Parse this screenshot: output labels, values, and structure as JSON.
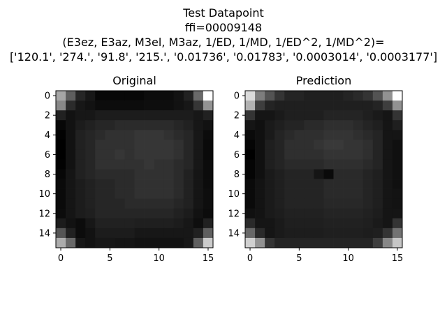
{
  "figure": {
    "title_lines": [
      "Test Datapoint",
      "ffi=00009148",
      "(E3ez, E3az, M3el, M3az, 1/ED, 1/MD, 1/ED^2, 1/MD^2)=",
      "['120.1', '274.', '91.8', '215.', '0.01736', '0.01783', '0.0003014', '0.0003177']"
    ]
  },
  "chart_data": [
    {
      "type": "heatmap",
      "title": "Original",
      "colormap": "gray",
      "x_ticks": [
        0,
        5,
        10,
        15
      ],
      "y_ticks": [
        0,
        2,
        4,
        6,
        8,
        10,
        12,
        14
      ],
      "xlim": [
        -0.5,
        15.5
      ],
      "ylim": [
        15.5,
        -0.5
      ],
      "values": [
        [
          170,
          100,
          45,
          30,
          15,
          15,
          15,
          15,
          15,
          20,
          20,
          20,
          25,
          40,
          110,
          255
        ],
        [
          140,
          50,
          30,
          25,
          20,
          20,
          20,
          20,
          20,
          22,
          22,
          22,
          25,
          30,
          60,
          150
        ],
        [
          40,
          25,
          30,
          30,
          35,
          35,
          35,
          35,
          35,
          35,
          35,
          35,
          35,
          35,
          30,
          40
        ],
        [
          15,
          25,
          35,
          40,
          45,
          45,
          50,
          50,
          50,
          50,
          50,
          50,
          45,
          40,
          30,
          25
        ],
        [
          10,
          25,
          40,
          45,
          50,
          55,
          55,
          55,
          60,
          60,
          60,
          55,
          50,
          45,
          30,
          20
        ],
        [
          8,
          25,
          40,
          45,
          55,
          55,
          55,
          55,
          60,
          60,
          60,
          60,
          55,
          45,
          30,
          18
        ],
        [
          8,
          25,
          40,
          45,
          55,
          55,
          60,
          55,
          60,
          60,
          60,
          60,
          55,
          45,
          30,
          18
        ],
        [
          10,
          25,
          40,
          45,
          55,
          55,
          55,
          55,
          55,
          60,
          55,
          55,
          50,
          45,
          30,
          20
        ],
        [
          15,
          28,
          40,
          45,
          50,
          50,
          50,
          50,
          55,
          55,
          55,
          55,
          50,
          40,
          28,
          20
        ],
        [
          18,
          28,
          35,
          40,
          45,
          45,
          50,
          50,
          55,
          55,
          55,
          55,
          50,
          40,
          28,
          20
        ],
        [
          18,
          28,
          35,
          40,
          45,
          45,
          50,
          50,
          55,
          55,
          55,
          55,
          50,
          40,
          28,
          22
        ],
        [
          18,
          28,
          35,
          40,
          45,
          45,
          45,
          50,
          50,
          50,
          50,
          50,
          45,
          40,
          28,
          22
        ],
        [
          20,
          28,
          35,
          38,
          45,
          45,
          45,
          45,
          45,
          45,
          45,
          45,
          40,
          35,
          25,
          20
        ],
        [
          35,
          25,
          20,
          30,
          40,
          40,
          40,
          40,
          38,
          38,
          38,
          38,
          35,
          30,
          22,
          40
        ],
        [
          90,
          40,
          20,
          25,
          35,
          35,
          35,
          35,
          30,
          30,
          30,
          30,
          30,
          30,
          40,
          100
        ],
        [
          175,
          110,
          30,
          25,
          30,
          30,
          28,
          28,
          25,
          25,
          25,
          25,
          25,
          30,
          100,
          205
        ]
      ]
    },
    {
      "type": "heatmap",
      "title": "Prediction",
      "colormap": "gray",
      "x_ticks": [
        0,
        5,
        10,
        15
      ],
      "y_ticks": [
        0,
        2,
        4,
        6,
        8,
        10,
        12,
        14
      ],
      "xlim": [
        -0.5,
        15.5
      ],
      "ylim": [
        15.5,
        -0.5
      ],
      "values": [
        [
          220,
          130,
          90,
          60,
          45,
          45,
          40,
          40,
          40,
          40,
          45,
          50,
          60,
          90,
          150,
          255
        ],
        [
          180,
          70,
          45,
          40,
          40,
          40,
          40,
          40,
          40,
          40,
          40,
          40,
          40,
          45,
          70,
          150
        ],
        [
          60,
          30,
          30,
          35,
          40,
          40,
          40,
          40,
          45,
          45,
          45,
          45,
          40,
          35,
          30,
          60
        ],
        [
          30,
          25,
          35,
          40,
          45,
          45,
          50,
          50,
          55,
          55,
          55,
          50,
          45,
          40,
          30,
          40
        ],
        [
          20,
          25,
          35,
          45,
          50,
          55,
          55,
          55,
          60,
          60,
          60,
          55,
          50,
          45,
          30,
          30
        ],
        [
          15,
          25,
          40,
          45,
          55,
          55,
          55,
          60,
          65,
          65,
          60,
          60,
          55,
          45,
          30,
          25
        ],
        [
          10,
          25,
          40,
          45,
          55,
          55,
          55,
          55,
          60,
          60,
          60,
          60,
          55,
          45,
          30,
          25
        ],
        [
          15,
          25,
          40,
          45,
          50,
          50,
          50,
          50,
          55,
          55,
          55,
          55,
          50,
          45,
          30,
          25
        ],
        [
          15,
          25,
          35,
          40,
          45,
          45,
          45,
          30,
          20,
          50,
          50,
          50,
          45,
          40,
          30,
          25
        ],
        [
          20,
          28,
          35,
          40,
          45,
          45,
          45,
          45,
          50,
          50,
          50,
          50,
          45,
          40,
          30,
          25
        ],
        [
          20,
          28,
          35,
          40,
          45,
          45,
          45,
          45,
          50,
          50,
          50,
          50,
          45,
          40,
          30,
          28
        ],
        [
          20,
          28,
          35,
          40,
          45,
          45,
          45,
          45,
          48,
          48,
          48,
          48,
          45,
          40,
          30,
          28
        ],
        [
          25,
          28,
          35,
          38,
          42,
          42,
          42,
          42,
          45,
          45,
          45,
          45,
          42,
          38,
          30,
          30
        ],
        [
          50,
          30,
          30,
          35,
          40,
          40,
          40,
          40,
          42,
          42,
          42,
          42,
          40,
          35,
          30,
          60
        ],
        [
          110,
          50,
          30,
          35,
          38,
          38,
          38,
          38,
          40,
          40,
          40,
          40,
          38,
          40,
          60,
          120
        ],
        [
          210,
          150,
          60,
          45,
          45,
          45,
          45,
          45,
          45,
          45,
          45,
          45,
          45,
          70,
          140,
          200
        ]
      ]
    }
  ]
}
